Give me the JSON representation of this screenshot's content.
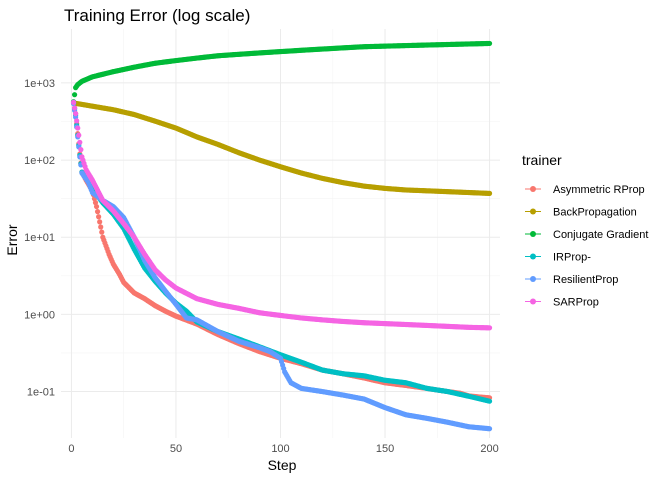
{
  "chart_data": {
    "type": "scatter",
    "title": "Training Error (log scale)",
    "xlabel": "Step",
    "ylabel": "Error",
    "x_scale": "linear",
    "y_scale": "log10",
    "xlim": [
      -5,
      205
    ],
    "ylim": [
      0.025,
      5000
    ],
    "x_ticks": [
      0,
      50,
      100,
      150,
      200
    ],
    "x_tick_labels": [
      "0",
      "50",
      "100",
      "150",
      "200"
    ],
    "y_ticks": [
      0.1,
      1,
      10,
      100,
      1000
    ],
    "y_tick_labels": [
      "1e-01",
      "1e+00",
      "1e+01",
      "1e+02",
      "1e+03"
    ],
    "grid": true,
    "legend": {
      "title": "trainer",
      "position": "right"
    },
    "series": [
      {
        "name": "Asymmetric RProp",
        "color": "#F8766D",
        "points": [
          [
            1,
            560
          ],
          [
            2,
            400
          ],
          [
            3,
            220
          ],
          [
            4,
            120
          ],
          [
            5,
            70
          ],
          [
            7,
            55
          ],
          [
            10,
            40
          ],
          [
            12,
            25
          ],
          [
            15,
            10
          ],
          [
            18,
            6
          ],
          [
            20,
            4.5
          ],
          [
            23,
            3.3
          ],
          [
            25,
            2.6
          ],
          [
            30,
            1.9
          ],
          [
            35,
            1.6
          ],
          [
            40,
            1.3
          ],
          [
            45,
            1.1
          ],
          [
            50,
            0.95
          ],
          [
            60,
            0.75
          ],
          [
            70,
            0.55
          ],
          [
            80,
            0.42
          ],
          [
            90,
            0.33
          ],
          [
            100,
            0.27
          ],
          [
            110,
            0.23
          ],
          [
            120,
            0.19
          ],
          [
            130,
            0.17
          ],
          [
            140,
            0.15
          ],
          [
            150,
            0.13
          ],
          [
            160,
            0.12
          ],
          [
            170,
            0.11
          ],
          [
            180,
            0.1
          ],
          [
            186,
            0.095
          ],
          [
            190,
            0.088
          ],
          [
            195,
            0.085
          ],
          [
            200,
            0.083
          ]
        ]
      },
      {
        "name": "BackPropagation",
        "color": "#B79F00",
        "points": [
          [
            1,
            550
          ],
          [
            10,
            500
          ],
          [
            20,
            450
          ],
          [
            30,
            390
          ],
          [
            40,
            320
          ],
          [
            50,
            260
          ],
          [
            60,
            200
          ],
          [
            70,
            160
          ],
          [
            80,
            125
          ],
          [
            90,
            100
          ],
          [
            100,
            82
          ],
          [
            110,
            68
          ],
          [
            120,
            58
          ],
          [
            130,
            51
          ],
          [
            140,
            46
          ],
          [
            150,
            43
          ],
          [
            160,
            41
          ],
          [
            170,
            40
          ],
          [
            180,
            39
          ],
          [
            190,
            38
          ],
          [
            200,
            37
          ]
        ]
      },
      {
        "name": "Conjugate Gradient",
        "color": "#00BA38",
        "points": [
          [
            1,
            570
          ],
          [
            2,
            870
          ],
          [
            3,
            950
          ],
          [
            5,
            1050
          ],
          [
            10,
            1200
          ],
          [
            20,
            1400
          ],
          [
            30,
            1600
          ],
          [
            40,
            1800
          ],
          [
            50,
            1950
          ],
          [
            60,
            2100
          ],
          [
            70,
            2250
          ],
          [
            80,
            2350
          ],
          [
            90,
            2450
          ],
          [
            100,
            2550
          ],
          [
            110,
            2650
          ],
          [
            120,
            2750
          ],
          [
            130,
            2850
          ],
          [
            140,
            2950
          ],
          [
            150,
            3000
          ],
          [
            160,
            3050
          ],
          [
            170,
            3100
          ],
          [
            180,
            3150
          ],
          [
            190,
            3200
          ],
          [
            200,
            3250
          ]
        ]
      },
      {
        "name": "IRProp-",
        "color": "#00BFC4",
        "points": [
          [
            1,
            560
          ],
          [
            2,
            380
          ],
          [
            3,
            210
          ],
          [
            4,
            115
          ],
          [
            5,
            70
          ],
          [
            8,
            55
          ],
          [
            10,
            42
          ],
          [
            15,
            28
          ],
          [
            20,
            20
          ],
          [
            25,
            13
          ],
          [
            30,
            7
          ],
          [
            35,
            4
          ],
          [
            40,
            2.7
          ],
          [
            45,
            1.9
          ],
          [
            50,
            1.4
          ],
          [
            55,
            1.1
          ],
          [
            60,
            0.8
          ],
          [
            70,
            0.6
          ],
          [
            80,
            0.48
          ],
          [
            90,
            0.38
          ],
          [
            100,
            0.3
          ],
          [
            110,
            0.24
          ],
          [
            120,
            0.19
          ],
          [
            130,
            0.17
          ],
          [
            140,
            0.16
          ],
          [
            150,
            0.14
          ],
          [
            160,
            0.13
          ],
          [
            170,
            0.11
          ],
          [
            180,
            0.1
          ],
          [
            190,
            0.087
          ],
          [
            200,
            0.075
          ]
        ]
      },
      {
        "name": "ResilientProp",
        "color": "#619CFF",
        "points": [
          [
            1,
            540
          ],
          [
            2,
            360
          ],
          [
            3,
            200
          ],
          [
            4,
            110
          ],
          [
            5,
            68
          ],
          [
            8,
            52
          ],
          [
            10,
            38
          ],
          [
            15,
            30
          ],
          [
            20,
            25
          ],
          [
            25,
            18
          ],
          [
            30,
            10
          ],
          [
            35,
            5
          ],
          [
            40,
            3
          ],
          [
            45,
            2
          ],
          [
            50,
            1.35
          ],
          [
            55,
            0.9
          ],
          [
            60,
            0.85
          ],
          [
            70,
            0.6
          ],
          [
            80,
            0.45
          ],
          [
            90,
            0.37
          ],
          [
            95,
            0.33
          ],
          [
            100,
            0.27
          ],
          [
            102,
            0.18
          ],
          [
            105,
            0.13
          ],
          [
            110,
            0.11
          ],
          [
            120,
            0.1
          ],
          [
            130,
            0.09
          ],
          [
            140,
            0.08
          ],
          [
            150,
            0.062
          ],
          [
            160,
            0.05
          ],
          [
            170,
            0.045
          ],
          [
            180,
            0.04
          ],
          [
            190,
            0.035
          ],
          [
            200,
            0.033
          ]
        ]
      },
      {
        "name": "SARProp",
        "color": "#F564E3",
        "points": [
          [
            1,
            560
          ],
          [
            2,
            400
          ],
          [
            3,
            260
          ],
          [
            4,
            170
          ],
          [
            5,
            110
          ],
          [
            7,
            75
          ],
          [
            10,
            55
          ],
          [
            15,
            30
          ],
          [
            20,
            22
          ],
          [
            25,
            15
          ],
          [
            30,
            10
          ],
          [
            35,
            6
          ],
          [
            40,
            3.8
          ],
          [
            45,
            2.8
          ],
          [
            50,
            2.2
          ],
          [
            60,
            1.6
          ],
          [
            70,
            1.35
          ],
          [
            80,
            1.2
          ],
          [
            90,
            1.05
          ],
          [
            100,
            0.97
          ],
          [
            110,
            0.9
          ],
          [
            120,
            0.85
          ],
          [
            130,
            0.81
          ],
          [
            140,
            0.78
          ],
          [
            150,
            0.76
          ],
          [
            160,
            0.74
          ],
          [
            170,
            0.72
          ],
          [
            180,
            0.7
          ],
          [
            190,
            0.68
          ],
          [
            200,
            0.67
          ]
        ]
      }
    ]
  }
}
